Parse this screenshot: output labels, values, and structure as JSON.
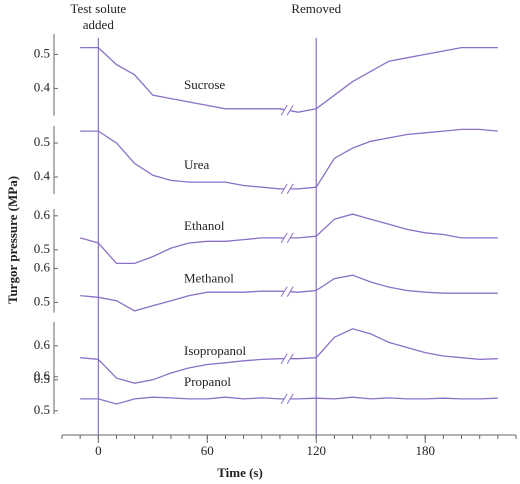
{
  "chart_data": {
    "type": "line",
    "xlabel": "Time (s)",
    "ylabel": "Turgor pressure (MPa)",
    "x": [
      -10,
      0,
      10,
      20,
      30,
      40,
      50,
      60,
      70,
      80,
      90,
      100,
      110,
      120,
      130,
      140,
      150,
      160,
      170,
      180,
      190,
      200,
      210,
      220
    ],
    "xlim": [
      -20,
      230
    ],
    "xticks": [
      0,
      60,
      120,
      180
    ],
    "xminor_step": 10,
    "break_x": 104,
    "color": "#8a70c8",
    "annotations": [
      {
        "lines": [
          "Test solute",
          "added"
        ],
        "x": 0
      },
      {
        "lines": [
          "Removed"
        ],
        "x": 120
      }
    ],
    "series": [
      {
        "name": "Sucrose",
        "ylim": [
          0.32,
          0.56
        ],
        "yticks": [
          0.4,
          0.5
        ],
        "values": [
          0.52,
          0.52,
          0.47,
          0.44,
          0.38,
          0.37,
          0.36,
          0.35,
          0.34,
          0.34,
          0.34,
          0.34,
          0.33,
          0.34,
          0.38,
          0.42,
          0.45,
          0.48,
          0.49,
          0.5,
          0.51,
          0.52,
          0.52,
          0.52
        ]
      },
      {
        "name": "Urea",
        "ylim": [
          0.35,
          0.55
        ],
        "yticks": [
          0.4,
          0.5
        ],
        "values": [
          0.535,
          0.535,
          0.5,
          0.44,
          0.405,
          0.39,
          0.385,
          0.385,
          0.385,
          0.375,
          0.37,
          0.365,
          0.365,
          0.37,
          0.455,
          0.485,
          0.505,
          0.515,
          0.525,
          0.53,
          0.535,
          0.54,
          0.54,
          0.535
        ]
      },
      {
        "name": "Ethanol",
        "ylim": [
          0.45,
          0.62
        ],
        "yticks": [
          0.5,
          0.6
        ],
        "values": [
          0.535,
          0.52,
          0.46,
          0.46,
          0.48,
          0.505,
          0.52,
          0.525,
          0.525,
          0.53,
          0.535,
          0.535,
          0.535,
          0.54,
          0.59,
          0.605,
          0.59,
          0.575,
          0.56,
          0.55,
          0.545,
          0.535,
          0.535,
          0.535
        ]
      },
      {
        "name": "Methanol",
        "ylim": [
          0.47,
          0.61
        ],
        "yticks": [
          0.5,
          0.6
        ],
        "values": [
          0.52,
          0.515,
          0.505,
          0.475,
          0.49,
          0.505,
          0.52,
          0.53,
          0.53,
          0.53,
          0.533,
          0.533,
          0.53,
          0.535,
          0.57,
          0.58,
          0.56,
          0.545,
          0.535,
          0.53,
          0.527,
          0.527,
          0.527,
          0.527
        ]
      },
      {
        "name": "Isopropanol",
        "ylim": [
          0.47,
          0.67
        ],
        "yticks": [
          0.5,
          0.6
        ],
        "values": [
          0.565,
          0.56,
          0.505,
          0.49,
          0.5,
          0.52,
          0.535,
          0.545,
          0.55,
          0.556,
          0.56,
          0.562,
          0.562,
          0.565,
          0.625,
          0.65,
          0.635,
          0.61,
          0.595,
          0.58,
          0.57,
          0.565,
          0.56,
          0.562
        ]
      },
      {
        "name": "Propanol",
        "ylim": [
          0.49,
          0.62
        ],
        "yticks": [
          0.5,
          0.6
        ],
        "values": [
          0.535,
          0.535,
          0.52,
          0.535,
          0.54,
          0.538,
          0.535,
          0.535,
          0.54,
          0.535,
          0.538,
          0.535,
          0.535,
          0.537,
          0.535,
          0.54,
          0.535,
          0.538,
          0.535,
          0.535,
          0.537,
          0.535,
          0.535,
          0.537
        ]
      }
    ]
  }
}
